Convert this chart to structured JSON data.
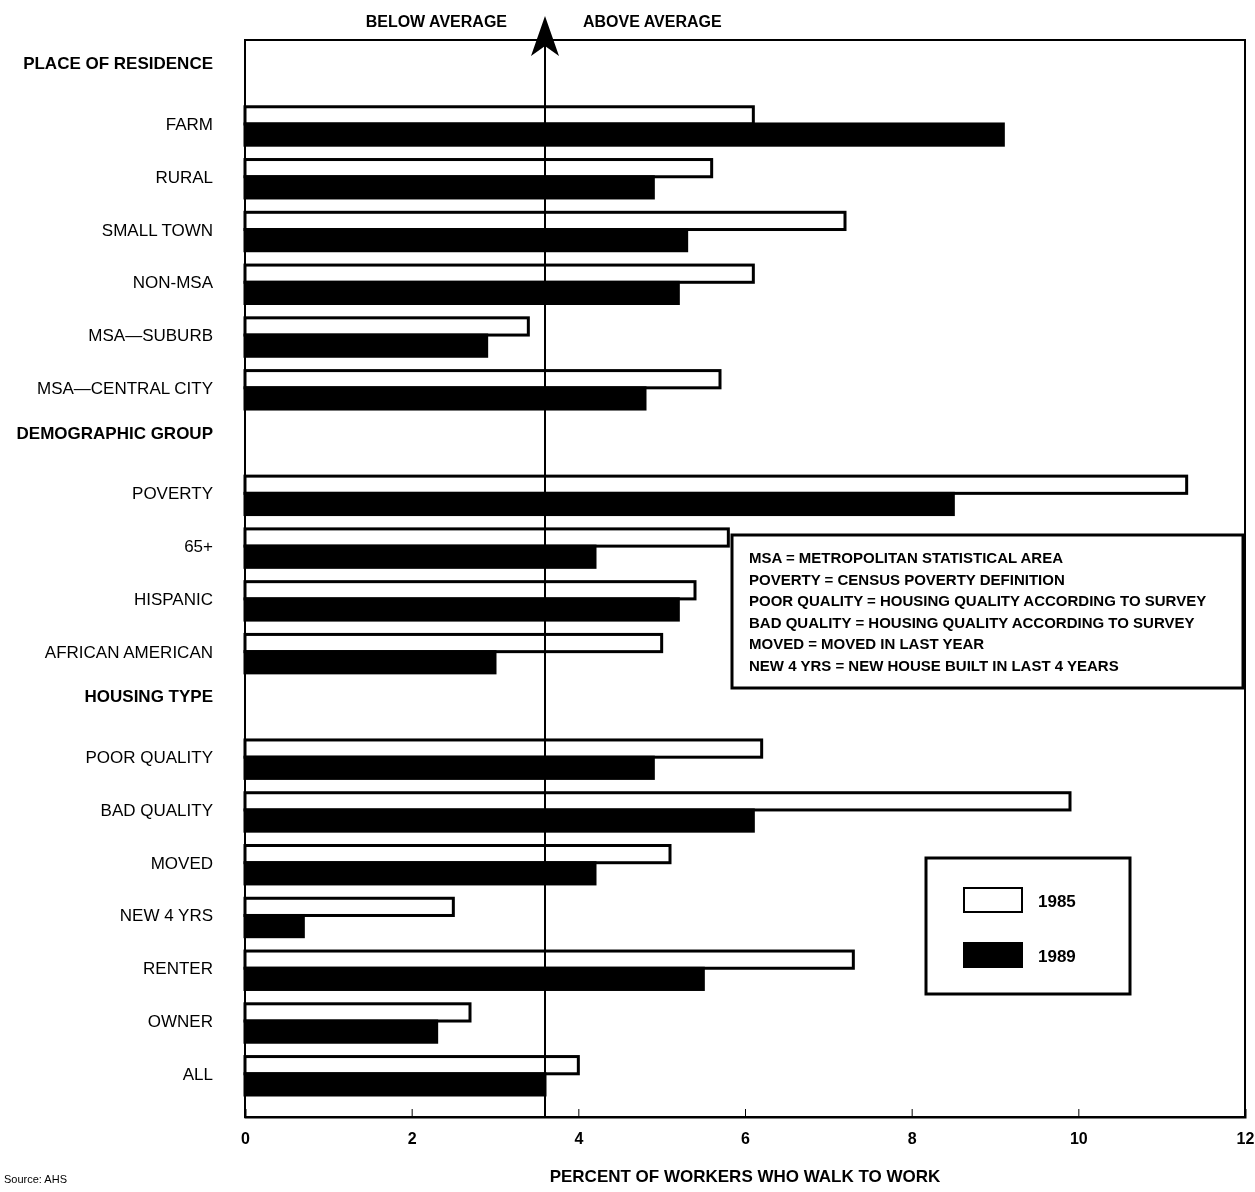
{
  "chart_data": {
    "type": "bar",
    "orientation": "horizontal",
    "categories": [
      "PLACE OF RESIDENCE",
      "FARM",
      "RURAL",
      "SMALL TOWN",
      "NON-MSA",
      "MSA—SUBURB",
      "MSA—CENTRAL CITY",
      "DEMOGRAPHIC GROUP",
      "POVERTY",
      "65+",
      "HISPANIC",
      "AFRICAN AMERICAN",
      "HOUSING TYPE",
      "POOR QUALITY",
      "BAD QUALITY",
      "MOVED",
      "NEW 4 YRS",
      "RENTER",
      "OWNER",
      "ALL"
    ],
    "series": [
      {
        "name": "1985",
        "color": "#ffffff",
        "values": [
          null,
          6.1,
          5.6,
          7.2,
          6.1,
          3.4,
          5.7,
          null,
          11.3,
          5.8,
          5.4,
          5.0,
          null,
          6.2,
          9.9,
          5.1,
          2.5,
          7.3,
          2.7,
          4.0
        ]
      },
      {
        "name": "1989",
        "color": "#000000",
        "values": [
          null,
          9.1,
          4.9,
          5.3,
          5.2,
          2.9,
          4.8,
          null,
          8.5,
          4.2,
          5.2,
          3.0,
          null,
          4.9,
          6.1,
          4.2,
          0.7,
          5.5,
          2.3,
          3.6
        ]
      }
    ],
    "xlabel": "PERCENT OF WORKERS WHO WALK TO WORK",
    "xlim": [
      0,
      12
    ],
    "xticks": [
      0,
      2,
      4,
      6,
      8,
      10,
      12
    ],
    "ref_lines": [
      {
        "axis": "x",
        "value": 3.6,
        "color": "#000000"
      }
    ],
    "annotations": [
      "BELOW AVERAGE",
      "ABOVE AVERAGE",
      "MSA = METROPOLITAN STATISTICAL AREA\nPOVERTY = CENSUS POVERTY DEFINITION\nPOOR QUALITY = HOUSING QUALITY ACCORDING TO SURVEY\nBAD QUALITY = HOUSING QUALITY ACCORDING TO SURVEY\nMOVED = MOVED IN LAST YEAR\nNEW 4 YRS = NEW HOUSE BUILT IN LAST 4 YEARS",
      "Source: AHS"
    ],
    "legend": "bottom right",
    "grid": false
  }
}
